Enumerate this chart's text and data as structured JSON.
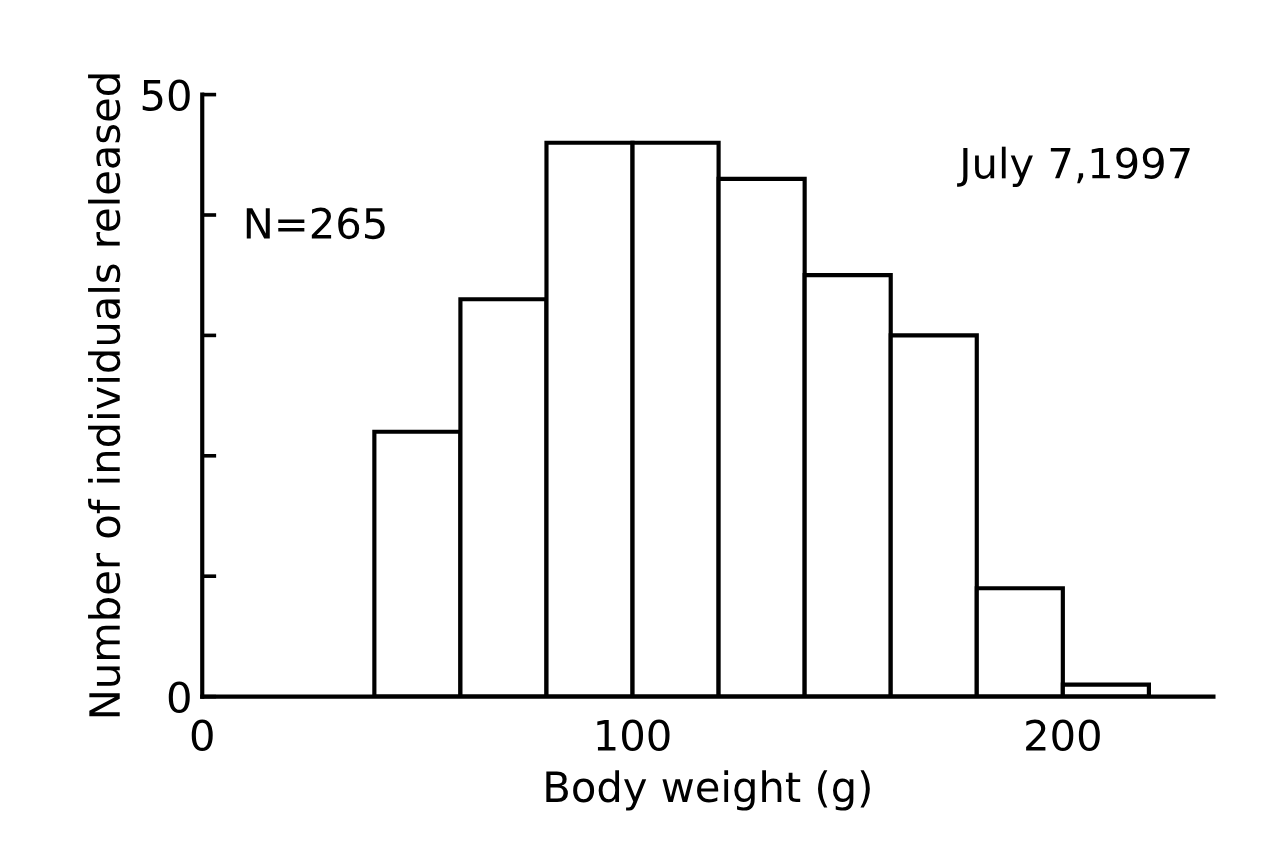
{
  "chart_data": {
    "type": "histogram",
    "xlabel": "Body weight (g)",
    "ylabel": "Number of individuals released",
    "bins": [
      40,
      60,
      80,
      100,
      120,
      140,
      160,
      180,
      200,
      220
    ],
    "values": [
      22,
      33,
      46,
      46,
      43,
      35,
      30,
      9,
      1
    ],
    "color": "#ffffff",
    "xlim": [
      0,
      235
    ],
    "xticks": [
      0,
      100,
      200
    ],
    "ylim": [
      0,
      50
    ],
    "yticks": [
      0,
      {
        "value": 10,
        "label": null
      },
      {
        "value": 20,
        "label": null
      },
      {
        "value": 30,
        "label": null
      },
      {
        "value": 40,
        "label": null
      },
      50
    ],
    "annotations": [
      "N=265",
      "July 7,1997"
    ],
    "grid": false
  }
}
